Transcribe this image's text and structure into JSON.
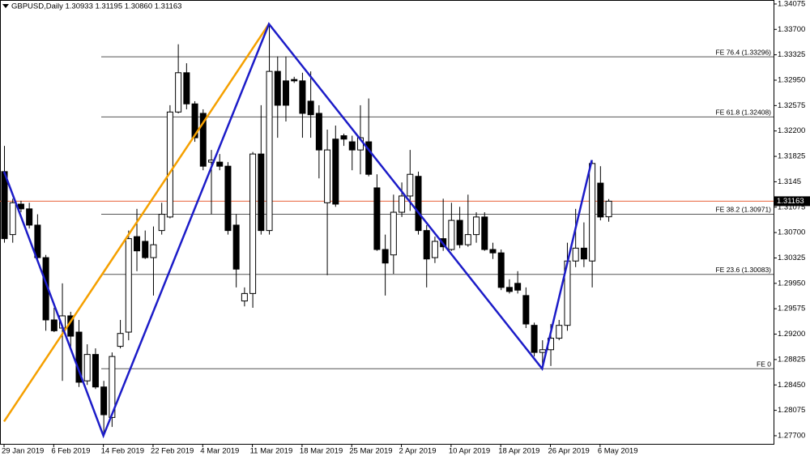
{
  "chart_data": {
    "type": "candlestick",
    "title": "GBPUSD,Daily  1.30933 1.31195 1.30860 1.31163",
    "categories": [
      "29 Jan 2019",
      null,
      null,
      null,
      null,
      null,
      "6 Feb 2019",
      null,
      null,
      null,
      null,
      null,
      "14 Feb 2019",
      null,
      null,
      null,
      null,
      null,
      "22 Feb 2019",
      null,
      null,
      null,
      null,
      null,
      "4 Mar 2019",
      null,
      null,
      null,
      null,
      null,
      "11 Mar 2019",
      null,
      null,
      null,
      null,
      null,
      "18 Mar 2019",
      null,
      null,
      null,
      null,
      null,
      "25 Mar 2019",
      null,
      null,
      null,
      null,
      null,
      "2 Apr 2019",
      null,
      null,
      null,
      null,
      null,
      "10 Apr 2019",
      null,
      null,
      null,
      null,
      null,
      "18 Apr 2019",
      null,
      null,
      null,
      null,
      null,
      "26 Apr 2019",
      null,
      null,
      null,
      null,
      null,
      "6 May 2019",
      null
    ],
    "open": [
      1.316,
      1.3067,
      1.3112,
      1.3105,
      1.3081,
      1.3033,
      1.2941,
      1.2929,
      1.2947,
      1.2923,
      1.2851,
      1.289,
      1.2842,
      1.2797,
      1.2902,
      1.2923,
      1.3064,
      1.3057,
      1.3033,
      1.3073,
      1.3093,
      1.3248,
      1.3306,
      1.326,
      1.3246,
      1.3174,
      1.3174,
      1.3168,
      1.3081,
      1.2969,
      1.298,
      1.3186,
      1.3073,
      1.3308,
      1.3294,
      1.3296,
      1.3294,
      1.3264,
      1.3246,
      1.3114,
      1.3208,
      1.3213,
      1.3204,
      1.3192,
      1.3204,
      1.3136,
      1.3045,
      1.3037,
      1.31,
      1.3124,
      1.3153,
      1.3073,
      1.3033,
      1.3061,
      1.3045,
      1.3088,
      1.3052,
      1.3067,
      1.3093,
      1.3045,
      1.304,
      1.2989,
      1.2995,
      1.2977,
      1.2933,
      1.2893,
      1.2897,
      1.2914,
      1.2933,
      1.3028,
      1.3047,
      1.3028,
      1.3143,
      1.30933
    ],
    "high": [
      1.3198,
      1.312,
      1.3117,
      1.3114,
      1.3097,
      1.3037,
      1.2959,
      1.2995,
      1.2953,
      1.2941,
      1.2905,
      1.2899,
      1.2851,
      1.2893,
      1.2941,
      1.3073,
      1.3105,
      1.3073,
      1.3079,
      1.3114,
      1.3258,
      1.3348,
      1.332,
      1.3264,
      1.3252,
      1.3192,
      1.3186,
      1.3174,
      1.3097,
      1.2989,
      1.3189,
      1.3258,
      1.3378,
      1.333,
      1.333,
      1.33,
      1.3306,
      1.3308,
      1.3258,
      1.3222,
      1.3228,
      1.3216,
      1.3213,
      1.3258,
      1.3268,
      1.3156,
      1.3067,
      1.3126,
      1.3144,
      1.3192,
      1.316,
      1.3081,
      1.3064,
      1.312,
      1.3114,
      1.3108,
      1.3126,
      1.31,
      1.31,
      1.3055,
      1.3045,
      1.3001,
      1.3013,
      1.2989,
      1.2937,
      1.2911,
      1.2935,
      1.2941,
      1.3055,
      1.3105,
      1.3085,
      1.3177,
      1.3168,
      1.31195
    ],
    "low": [
      1.3055,
      1.3055,
      1.31,
      1.3076,
      1.3031,
      1.2925,
      1.2923,
      1.2851,
      1.2899,
      1.2842,
      1.2845,
      1.2839,
      1.277,
      1.2783,
      1.2899,
      1.2911,
      1.3013,
      1.3031,
      1.2977,
      1.3067,
      1.3091,
      1.3246,
      1.3252,
      1.3204,
      1.3162,
      1.3097,
      1.3162,
      1.3067,
      1.2989,
      1.2961,
      1.2959,
      1.3067,
      1.3067,
      1.321,
      1.3234,
      1.3291,
      1.321,
      1.321,
      1.315,
      1.3007,
      1.3108,
      1.3198,
      1.3162,
      1.3156,
      1.3153,
      1.3043,
      1.2977,
      1.3009,
      1.3093,
      1.3102,
      1.3067,
      1.2989,
      1.3025,
      1.3043,
      1.3043,
      1.3047,
      1.3049,
      1.3055,
      1.3043,
      1.3031,
      1.2985,
      1.298,
      1.298,
      1.2929,
      1.2887,
      1.2875,
      1.2873,
      1.2911,
      1.2925,
      1.3019,
      1.3019,
      1.2989,
      1.3088,
      1.3086
    ],
    "close": [
      1.3061,
      1.3114,
      1.3105,
      1.3081,
      1.3033,
      1.2941,
      1.2925,
      1.2947,
      1.2917,
      1.2849,
      1.289,
      1.2842,
      1.2801,
      1.2887,
      1.2921,
      1.3061,
      1.3043,
      1.3033,
      1.3052,
      1.3097,
      1.3248,
      1.3306,
      1.326,
      1.321,
      1.3168,
      1.3177,
      1.3168,
      1.3073,
      1.3016,
      1.298,
      1.3186,
      1.3073,
      1.3308,
      1.3258,
      1.3258,
      1.3294,
      1.3246,
      1.3244,
      1.3192,
      1.3192,
      1.3112,
      1.3208,
      1.3192,
      1.321,
      1.3156,
      1.3045,
      1.3025,
      1.31,
      1.3124,
      1.3156,
      1.3073,
      1.3031,
      1.3057,
      1.3049,
      1.3088,
      1.3052,
      1.3067,
      1.3093,
      1.3045,
      1.304,
      1.2989,
      1.2983,
      1.2985,
      1.2935,
      1.2893,
      1.2897,
      1.2914,
      1.2933,
      1.3028,
      1.3047,
      1.3031,
      1.3172,
      1.3093,
      1.31163
    ],
    "ylim": [
      1.2758,
      1.34134
    ],
    "yticks": [
      1.34075,
      {
        "value": 1.337,
        "label": "1.33700"
      },
      1.33325,
      {
        "value": 1.3295,
        "label": "1.32950"
      },
      1.32575,
      {
        "value": 1.322,
        "label": "1.32200"
      },
      1.31825,
      1.3145,
      1.31075,
      {
        "value": 1.307,
        "label": "1.30700"
      },
      1.30325,
      {
        "value": 1.2995,
        "label": "1.29950"
      },
      1.29575,
      {
        "value": 1.292,
        "label": "1.29200"
      },
      1.28825,
      {
        "value": 1.2845,
        "label": "1.28450"
      },
      1.28075,
      {
        "value": 1.277,
        "label": "1.27700"
      }
    ],
    "current_price": 1.31163,
    "current_price_color": "#e8623a",
    "levels": [
      {
        "label": "FE 76.4  (1.33296)",
        "value": 1.33296
      },
      {
        "label": "FE 61.8  (1.32408)",
        "value": 1.32408
      },
      {
        "label": "FE 38.2  (1.30971)",
        "value": 1.30971
      },
      {
        "label": "FE 23.6  (1.30083)",
        "value": 1.30083
      },
      {
        "label": "FE 0",
        "value": 1.2869
      }
    ],
    "trendlines": [
      {
        "color": "#f5a000",
        "x": [
          0,
          32
        ],
        "y": [
          1.2791,
          1.3378
        ]
      },
      {
        "color": "#1c1cc8",
        "x": [
          0,
          12,
          32,
          65,
          71
        ],
        "y": [
          1.316,
          1.277,
          1.3378,
          1.2869,
          1.3177
        ]
      }
    ]
  }
}
